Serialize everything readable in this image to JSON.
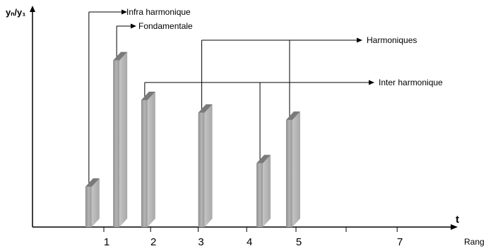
{
  "chart_data": {
    "type": "bar",
    "title": "",
    "ylabel": "yₙ/y₁",
    "xlabel": "t",
    "xlabel_secondary": "Rang",
    "xlim": [
      0,
      8
    ],
    "ylim": [
      0,
      1
    ],
    "grid": false,
    "x_ticks": [
      {
        "value": 1,
        "label": "1"
      },
      {
        "value": 2,
        "label": "2"
      },
      {
        "value": 3,
        "label": "3"
      },
      {
        "value": 4,
        "label": "4"
      },
      {
        "value": 5,
        "label": "5"
      },
      {
        "value": 6,
        "label": ""
      },
      {
        "value": 7,
        "label": "7"
      }
    ],
    "bars": [
      {
        "x": 0.6,
        "value": 0.27
      },
      {
        "x": 1.2,
        "value": 0.97
      },
      {
        "x": 1.8,
        "value": 0.75
      },
      {
        "x": 3.0,
        "value": 0.68
      },
      {
        "x": 4.2,
        "value": 0.4
      },
      {
        "x": 4.8,
        "value": 0.64
      }
    ],
    "annotations": [
      {
        "label": "Infra harmonique",
        "bars": [
          0
        ]
      },
      {
        "label": "Fondamentale",
        "bars": [
          1
        ]
      },
      {
        "label": "Harmoniques",
        "bars": [
          3,
          5
        ]
      },
      {
        "label": "Inter harmonique",
        "bars": [
          2,
          4
        ]
      }
    ]
  }
}
